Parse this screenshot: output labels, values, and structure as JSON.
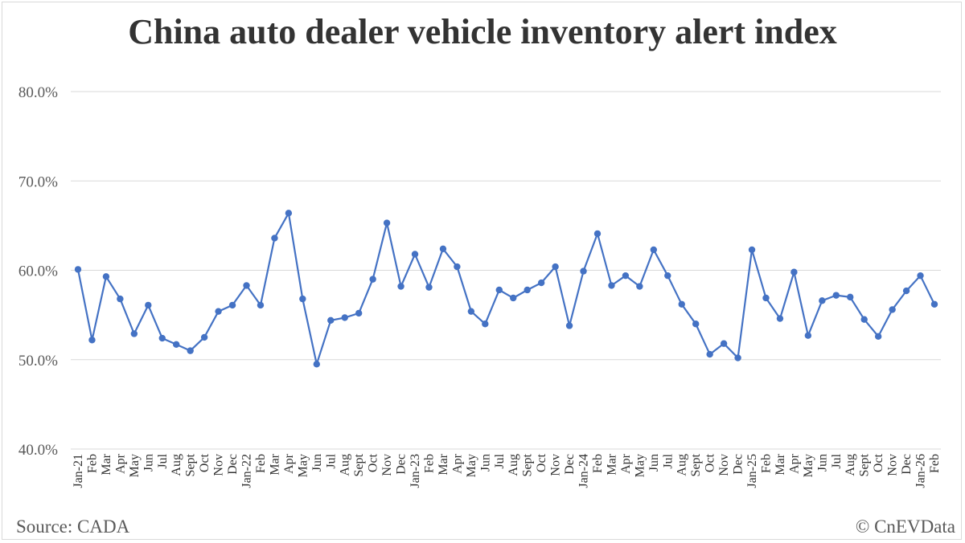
{
  "chart_data": {
    "type": "line",
    "title": "China auto dealer vehicle inventory alert index",
    "xlabel": "",
    "ylabel": "",
    "ylim": [
      40,
      80
    ],
    "yticks": [
      "40.0%",
      "50.0%",
      "60.0%",
      "70.0%",
      "80.0%"
    ],
    "grid": true,
    "legend": "none",
    "line_color": "#4472c4",
    "categories": [
      "Jan-21",
      "Feb",
      "Mar",
      "Apr",
      "May",
      "Jun",
      "Jul",
      "Aug",
      "Sept",
      "Oct",
      "Nov",
      "Dec",
      "Jan-22",
      "Feb",
      "Mar",
      "Apr",
      "May",
      "Jun",
      "Jul",
      "Aug",
      "Sept",
      "Oct",
      "Nov",
      "Dec",
      "Jan-23",
      "Feb",
      "Mar",
      "Apr",
      "May",
      "Jun",
      "Jul",
      "Aug",
      "Sept",
      "Oct",
      "Nov",
      "Dec",
      "Jan-24",
      "Feb",
      "Mar",
      "Apr",
      "May",
      "Jun",
      "Jul",
      "Aug",
      "Sept",
      "Oct",
      "Nov",
      "Dec",
      "Jan-25",
      "Feb",
      "Mar",
      "Apr",
      "May",
      "Jun",
      "Jul",
      "Aug",
      "Sept",
      "Oct",
      "Nov",
      "Dec",
      "Jan-26",
      "Feb"
    ],
    "series": [
      {
        "values": [
          60.1,
          52.2,
          59.3,
          56.8,
          52.9,
          56.1,
          52.4,
          51.7,
          51.0,
          52.5,
          55.4,
          56.1,
          58.3,
          56.1,
          63.6,
          66.4,
          56.8,
          49.5,
          54.4,
          54.7,
          55.2,
          59.0,
          65.3,
          58.2,
          61.8,
          58.1,
          62.4,
          60.4,
          55.4,
          54.0,
          57.8,
          56.9,
          57.8,
          58.6,
          60.4,
          53.8,
          59.9,
          64.1,
          58.3,
          59.4,
          58.2,
          62.3,
          59.4,
          56.2,
          54.0,
          50.6,
          51.8,
          50.2,
          62.3,
          56.9,
          54.6,
          59.8,
          52.7,
          56.6,
          57.2,
          57.0,
          54.5,
          52.6,
          55.6,
          57.7,
          59.4,
          56.2
        ]
      }
    ]
  },
  "footer": {
    "source": "Source: CADA",
    "copyright": "© CnEVData"
  }
}
